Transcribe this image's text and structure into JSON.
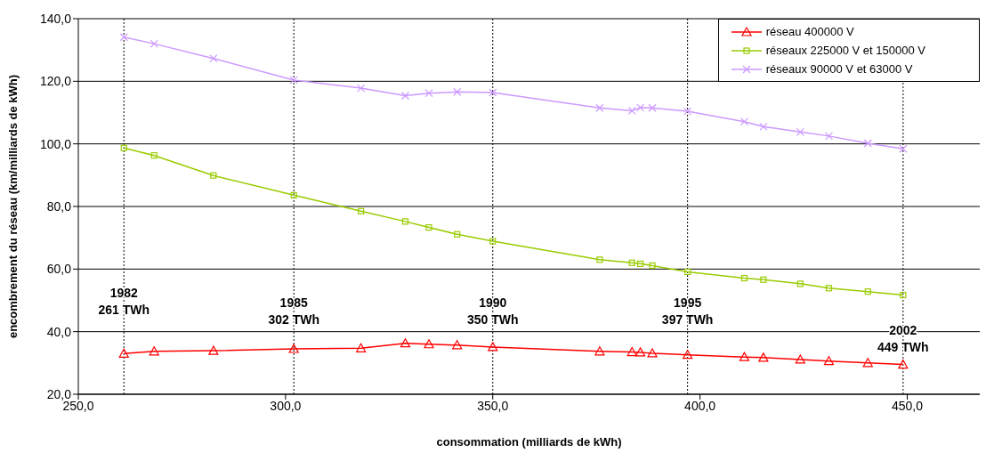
{
  "chart_data": {
    "type": "line",
    "xlabel": "consommation (milliards de kWh)",
    "ylabel": "encombrement du réseau (km/milliards de kWh)",
    "xlim": [
      250,
      467.5
    ],
    "xticks": [
      {
        "value": 250,
        "label": "250,0"
      },
      {
        "value": 300,
        "label": "300,0"
      },
      {
        "value": 350,
        "label": "350,0"
      },
      {
        "value": 400,
        "label": "400,0"
      },
      {
        "value": 450,
        "label": "450,0"
      }
    ],
    "ylim": [
      20,
      140
    ],
    "yticks": [
      {
        "value": 20,
        "label": "20,0"
      },
      {
        "value": 40,
        "label": "40,0"
      },
      {
        "value": 60,
        "label": "60,0"
      },
      {
        "value": 80,
        "label": "80,0"
      },
      {
        "value": 100,
        "label": "100,0"
      },
      {
        "value": 120,
        "label": "120,0"
      },
      {
        "value": 140,
        "label": "140,0"
      }
    ],
    "grid": "y",
    "legend": "top right",
    "x": [
      261,
      268.3,
      282.6,
      302,
      318.2,
      328.9,
      334.6,
      341.4,
      350,
      375.8,
      383.6,
      385.6,
      388.5,
      397,
      410.7,
      415.3,
      424.2,
      431.1,
      440.5,
      449
    ],
    "series": [
      {
        "name": "réseau 400000 V",
        "color": "#ff0000",
        "marker": "triangle",
        "values": [
          33.0,
          33.7,
          33.9,
          34.5,
          34.7,
          36.3,
          36.0,
          35.7,
          35.1,
          33.7,
          33.5,
          33.4,
          33.1,
          32.6,
          31.9,
          31.7,
          31.1,
          30.6,
          30.0,
          29.5
        ]
      },
      {
        "name": "réseaux 225000 V et 150000 V",
        "color": "#99cc00",
        "marker": "square",
        "values": [
          98.7,
          96.3,
          89.9,
          83.6,
          78.5,
          75.2,
          73.3,
          71.1,
          68.9,
          63.0,
          62.0,
          61.7,
          61.1,
          59.1,
          57.1,
          56.6,
          55.3,
          53.9,
          52.8,
          51.7
        ]
      },
      {
        "name": "réseaux 90000 V et 63000 V",
        "color": "#cc99ff",
        "marker": "cross",
        "values": [
          134.1,
          132.0,
          127.3,
          120.4,
          117.8,
          115.4,
          116.2,
          116.6,
          116.4,
          111.5,
          110.6,
          111.6,
          111.5,
          110.4,
          107.1,
          105.5,
          103.8,
          102.5,
          100.2,
          98.4
        ]
      }
    ],
    "ref_lines": [
      {
        "axis": "x",
        "value": 261,
        "line_style": "dotted"
      },
      {
        "axis": "x",
        "value": 302,
        "line_style": "dotted"
      },
      {
        "axis": "x",
        "value": 350,
        "line_style": "dotted"
      },
      {
        "axis": "x",
        "value": 397,
        "line_style": "dotted"
      },
      {
        "axis": "x",
        "value": 449,
        "line_style": "dotted"
      }
    ],
    "annotations": [
      {
        "text": "1982\n261 TWh",
        "x": 261,
        "y": 51
      },
      {
        "text": "1985\n302 TWh",
        "x": 302,
        "y": 48
      },
      {
        "text": "1990\n350 TWh",
        "x": 350,
        "y": 48
      },
      {
        "text": "1995\n397 TWh",
        "x": 397,
        "y": 48
      },
      {
        "text": "2002\n449 TWh",
        "x": 449,
        "y": 39
      }
    ]
  }
}
